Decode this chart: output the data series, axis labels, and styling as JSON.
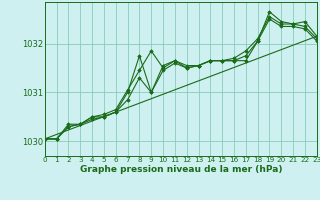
{
  "title": "Graphe pression niveau de la mer (hPa)",
  "background_color": "#cff0f0",
  "grid_color": "#88ccbb",
  "line_color": "#1a6b1a",
  "marker_color": "#1a6b1a",
  "xlim": [
    0,
    23
  ],
  "ylim": [
    1029.7,
    1032.85
  ],
  "yticks": [
    1030,
    1031,
    1032
  ],
  "xticks": [
    0,
    1,
    2,
    3,
    4,
    5,
    6,
    7,
    8,
    9,
    10,
    11,
    12,
    13,
    14,
    15,
    16,
    17,
    18,
    19,
    20,
    21,
    22,
    23
  ],
  "xtick_labels": [
    "0",
    "1",
    "2",
    "3",
    "4",
    "5",
    "6",
    "7",
    "8",
    "9",
    "10",
    "11",
    "12",
    "13",
    "14",
    "15",
    "16",
    "17",
    "18",
    "19",
    "20",
    "21",
    "22",
    "23"
  ],
  "series": [
    {
      "x": [
        0,
        1,
        2,
        3,
        4,
        5,
        6,
        7,
        8,
        9,
        10,
        11,
        12,
        13,
        14,
        15,
        16,
        17,
        18,
        19,
        20,
        21,
        22,
        23
      ],
      "y": [
        1030.05,
        1030.05,
        1030.35,
        1030.35,
        1030.5,
        1030.5,
        1030.6,
        1031.0,
        1031.75,
        1031.0,
        1031.55,
        1031.65,
        1031.55,
        1031.55,
        1031.65,
        1031.65,
        1031.65,
        1031.65,
        1032.05,
        1032.65,
        1032.45,
        1032.4,
        1032.45,
        1032.15
      ]
    },
    {
      "x": [
        0,
        1,
        2,
        3,
        4,
        5,
        6,
        7,
        8,
        9,
        10,
        11,
        12,
        13,
        14,
        15,
        16,
        17,
        18,
        19,
        20,
        21,
        22,
        23
      ],
      "y": [
        1030.05,
        1030.05,
        1030.3,
        1030.35,
        1030.5,
        1030.55,
        1030.65,
        1031.05,
        1031.45,
        1031.85,
        1031.5,
        1031.65,
        1031.5,
        1031.55,
        1031.65,
        1031.65,
        1031.7,
        1031.85,
        1032.1,
        1032.55,
        1032.4,
        1032.4,
        1032.35,
        1032.1
      ]
    },
    {
      "x": [
        0,
        1,
        2,
        3,
        4,
        5,
        6,
        7,
        8,
        9,
        10,
        11,
        12,
        13,
        14,
        15,
        16,
        17,
        18,
        19,
        20,
        21,
        22,
        23
      ],
      "y": [
        1030.05,
        1030.05,
        1030.3,
        1030.35,
        1030.45,
        1030.5,
        1030.6,
        1030.85,
        1031.3,
        1031.0,
        1031.45,
        1031.6,
        1031.5,
        1031.55,
        1031.65,
        1031.65,
        1031.65,
        1031.75,
        1032.05,
        1032.5,
        1032.35,
        1032.35,
        1032.3,
        1032.05
      ]
    },
    {
      "x": [
        0,
        23
      ],
      "y": [
        1030.05,
        1032.15
      ]
    }
  ]
}
